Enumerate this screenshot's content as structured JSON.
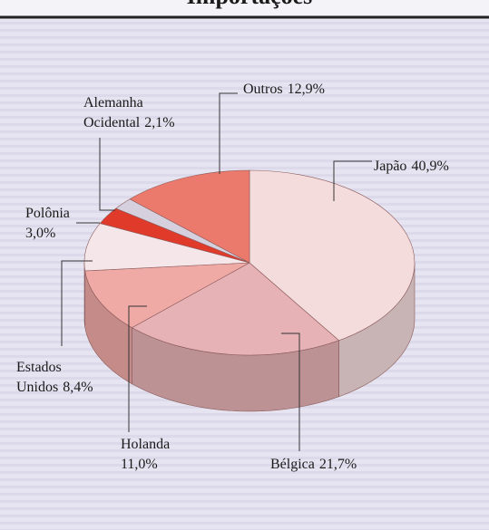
{
  "chart_data": {
    "type": "pie",
    "title": "Importações",
    "categories": [
      "Japão",
      "Bélgica",
      "Holanda",
      "Estados Unidos",
      "Polônia",
      "Alemanha Ocidental",
      "Outros"
    ],
    "values": [
      40.9,
      21.7,
      11.0,
      8.4,
      3.0,
      2.1,
      12.9
    ],
    "value_labels": [
      "40,9%",
      "21,7%",
      "11,0%",
      "8,4%",
      "3,0%",
      "2,1%",
      "12,9%"
    ],
    "colors": [
      "#f4dcdc",
      "#e6b2b6",
      "#f0aaa6",
      "#f5e6ea",
      "#e03a2a",
      "#d6d0de",
      "#eb7a6c"
    ]
  }
}
